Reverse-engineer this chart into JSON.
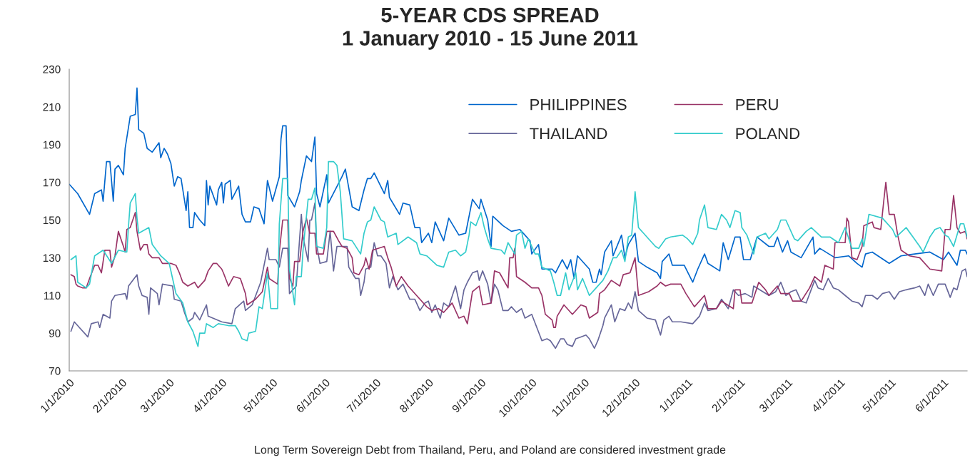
{
  "chart_data": {
    "type": "line",
    "title": "5-YEAR CDS SPREAD\n1 January 2010 - 15 June 2011",
    "xlim": [
      "2010-01-01",
      "2011-06-15"
    ],
    "xticks": [
      {
        "value": "2010-01-01",
        "label": "1/1/2010"
      },
      {
        "value": "2010-02-01",
        "label": "2/1/2010"
      },
      {
        "value": "2010-03-01",
        "label": "3/1/2010"
      },
      {
        "value": "2010-04-01",
        "label": "4/1/2010"
      },
      {
        "value": "2010-05-01",
        "label": "5/1/2010"
      },
      {
        "value": "2010-06-01",
        "label": "6/1/2010"
      },
      {
        "value": "2010-07-01",
        "label": "7/1/2010"
      },
      {
        "value": "2010-08-01",
        "label": "8/1/2010"
      },
      {
        "value": "2010-09-01",
        "label": "9/1/2010"
      },
      {
        "value": "2010-10-01",
        "label": "10/1/2010"
      },
      {
        "value": "2010-11-01",
        "label": "11/1/2010"
      },
      {
        "value": "2010-12-01",
        "label": "12/1/2010"
      },
      {
        "value": "2011-01-01",
        "label": "1/1/2011"
      },
      {
        "value": "2011-02-01",
        "label": "2/1/2011"
      },
      {
        "value": "2011-03-01",
        "label": "3/1/2011"
      },
      {
        "value": "2011-04-01",
        "label": "4/1/2011"
      },
      {
        "value": "2011-05-01",
        "label": "5/1/2011"
      },
      {
        "value": "2011-06-01",
        "label": "6/1/2011"
      }
    ],
    "ylim": [
      70,
      230
    ],
    "yticks": [
      70,
      90,
      110,
      130,
      150,
      170,
      190,
      210,
      230
    ],
    "grid": false,
    "legend": "top right",
    "annotations": [
      "Long Term Sovereign Debt from Thailand, Peru, and Poland are considered investment grade"
    ],
    "series": [
      {
        "name": "PHILIPPINES",
        "color": "#0066cc",
        "x": [
          "2010-01-01",
          "2010-01-06",
          "2010-01-13",
          "2010-01-16",
          "2010-01-20",
          "2010-01-21",
          "2010-01-23",
          "2010-01-25",
          "2010-01-27",
          "2010-01-28",
          "2010-01-30",
          "2010-02-02",
          "2010-02-03",
          "2010-02-06",
          "2010-02-09",
          "2010-02-10",
          "2010-02-11",
          "2010-02-14",
          "2010-02-16",
          "2010-02-19",
          "2010-02-23",
          "2010-02-24",
          "2010-02-26",
          "2010-02-28",
          "2010-03-02",
          "2010-03-04",
          "2010-03-06",
          "2010-03-08",
          "2010-03-11",
          "2010-03-12",
          "2010-03-13",
          "2010-03-15",
          "2010-03-16",
          "2010-03-19",
          "2010-03-22",
          "2010-03-23",
          "2010-03-24",
          "2010-03-25",
          "2010-03-29",
          "2010-03-30",
          "2010-04-01",
          "2010-04-02",
          "2010-04-03",
          "2010-04-06",
          "2010-04-07",
          "2010-04-11",
          "2010-04-13",
          "2010-04-15",
          "2010-04-18",
          "2010-04-20",
          "2010-04-23",
          "2010-04-26",
          "2010-04-28",
          "2010-05-01",
          "2010-05-05",
          "2010-05-06",
          "2010-05-07",
          "2010-05-09",
          "2010-05-10",
          "2010-05-14",
          "2010-05-17",
          "2010-05-18",
          "2010-05-21",
          "2010-05-24",
          "2010-05-26",
          "2010-05-27",
          "2010-05-29",
          "2010-06-02",
          "2010-06-03",
          "2010-06-11",
          "2010-06-13",
          "2010-06-17",
          "2010-06-21",
          "2010-06-24",
          "2010-06-26",
          "2010-06-28",
          "2010-06-30",
          "2010-07-06",
          "2010-07-08",
          "2010-07-09",
          "2010-07-15",
          "2010-07-17",
          "2010-07-21",
          "2010-07-24",
          "2010-07-27",
          "2010-07-28",
          "2010-08-01",
          "2010-08-03",
          "2010-08-05",
          "2010-08-10",
          "2010-08-13",
          "2010-08-19",
          "2010-08-23",
          "2010-08-27",
          "2010-08-31",
          "2010-09-01",
          "2010-09-05",
          "2010-09-07",
          "2010-09-08",
          "2010-09-14",
          "2010-09-19",
          "2010-09-24",
          "2010-09-30",
          "2010-10-01",
          "2010-10-05",
          "2010-10-07",
          "2010-10-13",
          "2010-10-15",
          "2010-10-19",
          "2010-10-22",
          "2010-10-24",
          "2010-10-26",
          "2010-10-28",
          "2010-11-04",
          "2010-11-06",
          "2010-11-08",
          "2010-11-10",
          "2010-11-11",
          "2010-11-13",
          "2010-11-17",
          "2010-11-18",
          "2010-11-23",
          "2010-11-25",
          "2010-11-27",
          "2010-12-01",
          "2010-12-03",
          "2010-12-08",
          "2010-12-14",
          "2010-12-16",
          "2010-12-17",
          "2010-12-21",
          "2010-12-23",
          "2010-12-30",
          "2011-01-04",
          "2011-01-07",
          "2011-01-11",
          "2011-01-13",
          "2011-01-20",
          "2011-01-22",
          "2011-01-25",
          "2011-01-29",
          "2011-02-01",
          "2011-02-03",
          "2011-02-07",
          "2011-02-11",
          "2011-02-18",
          "2011-02-21",
          "2011-02-23",
          "2011-02-26",
          "2011-03-01",
          "2011-03-03",
          "2011-03-09",
          "2011-03-16",
          "2011-03-17",
          "2011-03-20",
          "2011-03-29",
          "2011-04-06",
          "2011-04-11",
          "2011-04-14",
          "2011-04-16",
          "2011-04-20",
          "2011-04-30",
          "2011-05-07",
          "2011-05-15",
          "2011-05-24",
          "2011-06-01",
          "2011-06-04",
          "2011-06-09",
          "2011-06-11",
          "2011-06-14",
          "2011-06-15"
        ],
        "values": [
          169,
          164,
          153,
          164,
          166,
          160,
          181,
          181,
          160,
          177,
          179,
          174,
          188,
          205,
          206,
          220,
          198,
          196,
          188,
          186,
          191,
          183,
          188,
          185,
          180,
          168,
          173,
          172,
          155,
          165,
          146,
          146,
          154,
          150,
          147,
          171,
          158,
          168,
          158,
          166,
          170,
          159,
          169,
          171,
          161,
          168,
          153,
          149,
          149,
          157,
          156,
          148,
          171,
          160,
          173,
          193,
          200,
          200,
          163,
          157,
          165,
          171,
          184,
          181,
          194,
          164,
          157,
          174,
          159,
          173,
          177,
          157,
          155,
          166,
          172,
          172,
          175,
          164,
          171,
          162,
          153,
          159,
          158,
          146,
          146,
          138,
          143,
          138,
          149,
          139,
          151,
          142,
          143,
          161,
          156,
          161,
          150,
          136,
          152,
          147,
          144,
          145,
          139,
          132,
          137,
          124,
          124,
          122,
          129,
          124,
          129,
          119,
          131,
          124,
          117,
          117,
          124,
          121,
          133,
          139,
          131,
          142,
          130,
          137,
          143,
          128,
          125,
          122,
          119,
          128,
          132,
          126,
          126,
          117,
          124,
          132,
          127,
          123,
          138,
          129,
          141,
          141,
          129,
          129,
          141,
          136,
          136,
          141,
          133,
          139,
          133,
          130,
          141,
          132,
          135,
          130,
          131,
          127,
          125,
          132,
          133,
          127,
          131,
          132,
          133,
          129,
          133,
          126,
          134,
          134,
          132
        ]
      },
      {
        "name": "THAILAND",
        "color": "#666699",
        "x": [
          "2010-01-02",
          "2010-01-04",
          "2010-01-07",
          "2010-01-12",
          "2010-01-14",
          "2010-01-18",
          "2010-01-19",
          "2010-01-21",
          "2010-01-25",
          "2010-01-26",
          "2010-01-28",
          "2010-02-03",
          "2010-02-04",
          "2010-02-05",
          "2010-02-10",
          "2010-02-11",
          "2010-02-13",
          "2010-02-16",
          "2010-02-17",
          "2010-02-18",
          "2010-02-22",
          "2010-02-23",
          "2010-02-25",
          "2010-03-03",
          "2010-03-04",
          "2010-03-08",
          "2010-03-10",
          "2010-03-12",
          "2010-03-15",
          "2010-03-16",
          "2010-03-19",
          "2010-03-23",
          "2010-03-24",
          "2010-04-01",
          "2010-04-07",
          "2010-04-09",
          "2010-04-14",
          "2010-04-15",
          "2010-04-19",
          "2010-04-24",
          "2010-04-28",
          "2010-04-29",
          "2010-05-03",
          "2010-05-05",
          "2010-05-07",
          "2010-05-10",
          "2010-05-11",
          "2010-05-15",
          "2010-05-18",
          "2010-05-19",
          "2010-05-22",
          "2010-05-23",
          "2010-05-24",
          "2010-05-26",
          "2010-05-27",
          "2010-05-29",
          "2010-06-02",
          "2010-06-04",
          "2010-06-06",
          "2010-06-08",
          "2010-06-14",
          "2010-06-15",
          "2010-06-19",
          "2010-06-21",
          "2010-06-22",
          "2010-06-24",
          "2010-06-25",
          "2010-06-28",
          "2010-06-30",
          "2010-07-02",
          "2010-07-04",
          "2010-07-07",
          "2010-07-09",
          "2010-07-11",
          "2010-07-14",
          "2010-07-17",
          "2010-07-21",
          "2010-07-24",
          "2010-07-27",
          "2010-07-30",
          "2010-08-01",
          "2010-08-03",
          "2010-08-05",
          "2010-08-08",
          "2010-08-10",
          "2010-08-13",
          "2010-08-17",
          "2010-08-20",
          "2010-08-22",
          "2010-08-24",
          "2010-08-27",
          "2010-08-30",
          "2010-08-31",
          "2010-09-02",
          "2010-09-05",
          "2010-09-07",
          "2010-09-09",
          "2010-09-11",
          "2010-09-14",
          "2010-09-17",
          "2010-09-19",
          "2010-09-22",
          "2010-09-25",
          "2010-09-27",
          "2010-10-01",
          "2010-10-07",
          "2010-10-10",
          "2010-10-12",
          "2010-10-15",
          "2010-10-18",
          "2010-10-20",
          "2010-10-22",
          "2010-10-25",
          "2010-10-27",
          "2010-10-30",
          "2010-11-02",
          "2010-11-04",
          "2010-11-07",
          "2010-11-09",
          "2010-11-12",
          "2010-11-13",
          "2010-11-17",
          "2010-11-19",
          "2010-11-22",
          "2010-11-25",
          "2010-11-27",
          "2010-11-29",
          "2010-12-01",
          "2010-12-03",
          "2010-12-08",
          "2010-12-13",
          "2010-12-16",
          "2010-12-18",
          "2010-12-21",
          "2010-12-23",
          "2010-12-28",
          "2011-01-04",
          "2011-01-08",
          "2011-01-11",
          "2011-01-13",
          "2011-01-18",
          "2011-01-21",
          "2011-01-25",
          "2011-01-28",
          "2011-01-31",
          "2011-02-04",
          "2011-02-08",
          "2011-02-09",
          "2011-02-18",
          "2011-02-22",
          "2011-02-25",
          "2011-02-28",
          "2011-03-03",
          "2011-03-06",
          "2011-03-09",
          "2011-03-12",
          "2011-03-17",
          "2011-03-19",
          "2011-03-22",
          "2011-03-25",
          "2011-03-28",
          "2011-03-31",
          "2011-04-04",
          "2011-04-08",
          "2011-04-12",
          "2011-04-14",
          "2011-04-16",
          "2011-04-20",
          "2011-04-23",
          "2011-04-26",
          "2011-04-30",
          "2011-05-03",
          "2011-05-06",
          "2011-05-10",
          "2011-05-15",
          "2011-05-18",
          "2011-05-21",
          "2011-05-23",
          "2011-05-26",
          "2011-05-29",
          "2011-06-02",
          "2011-06-05",
          "2011-06-07",
          "2011-06-09",
          "2011-06-12",
          "2011-06-14",
          "2011-06-15"
        ],
        "values": [
          91,
          96,
          93,
          88,
          95,
          96,
          93,
          100,
          98,
          107,
          110,
          111,
          108,
          115,
          121,
          115,
          110,
          109,
          100,
          114,
          111,
          105,
          116,
          115,
          108,
          107,
          101,
          96,
          98,
          101,
          97,
          105,
          99,
          96,
          95,
          103,
          107,
          102,
          105,
          117,
          135,
          129,
          129,
          125,
          135,
          135,
          111,
          115,
          153,
          141,
          128,
          150,
          150,
          159,
          137,
          127,
          128,
          144,
          123,
          136,
          136,
          125,
          119,
          119,
          110,
          117,
          124,
          125,
          138,
          131,
          131,
          127,
          114,
          120,
          113,
          116,
          108,
          108,
          102,
          106,
          107,
          101,
          105,
          98,
          106,
          104,
          115,
          103,
          113,
          117,
          122,
          123,
          118,
          123,
          116,
          106,
          116,
          113,
          102,
          102,
          104,
          101,
          103,
          98,
          100,
          86,
          87,
          86,
          82,
          87,
          87,
          84,
          83,
          87,
          88,
          89,
          87,
          82,
          86,
          94,
          98,
          105,
          96,
          103,
          102,
          106,
          103,
          112,
          102,
          98,
          97,
          89,
          97,
          99,
          96,
          96,
          95,
          99,
          106,
          102,
          103,
          108,
          103,
          113,
          110,
          111,
          109,
          115,
          110,
          112,
          117,
          110,
          112,
          113,
          107,
          106,
          118,
          114,
          113,
          119,
          114,
          113,
          110,
          107,
          106,
          104,
          110,
          110,
          108,
          111,
          112,
          108,
          112,
          113,
          114,
          115,
          110,
          116,
          110,
          116,
          116,
          109,
          114,
          113,
          123,
          124,
          120
        ]
      },
      {
        "name": "PERU",
        "color": "#993366",
        "x": [
          "2010-01-02",
          "2010-01-04",
          "2010-01-05",
          "2010-01-06",
          "2010-01-09",
          "2010-01-11",
          "2010-01-13",
          "2010-01-16",
          "2010-01-18",
          "2010-01-20",
          "2010-01-22",
          "2010-01-25",
          "2010-01-26",
          "2010-01-28",
          "2010-01-30",
          "2010-02-02",
          "2010-02-03",
          "2010-02-04",
          "2010-02-06",
          "2010-02-09",
          "2010-02-10",
          "2010-02-12",
          "2010-02-14",
          "2010-02-16",
          "2010-02-17",
          "2010-02-19",
          "2010-02-23",
          "2010-02-25",
          "2010-02-28",
          "2010-03-02",
          "2010-03-05",
          "2010-03-07",
          "2010-03-09",
          "2010-03-12",
          "2010-03-16",
          "2010-03-18",
          "2010-03-22",
          "2010-03-24",
          "2010-03-27",
          "2010-03-29",
          "2010-04-01",
          "2010-04-02",
          "2010-04-05",
          "2010-04-08",
          "2010-04-12",
          "2010-04-15",
          "2010-04-16",
          "2010-04-21",
          "2010-04-25",
          "2010-04-28",
          "2010-04-29",
          "2010-05-04",
          "2010-05-05",
          "2010-05-07",
          "2010-05-10",
          "2010-05-11",
          "2010-05-13",
          "2010-05-14",
          "2010-05-17",
          "2010-05-19",
          "2010-05-21",
          "2010-05-23",
          "2010-05-26",
          "2010-05-27",
          "2010-05-31",
          "2010-06-02",
          "2010-06-06",
          "2010-06-09",
          "2010-06-11",
          "2010-06-14",
          "2010-06-17",
          "2010-06-18",
          "2010-06-21",
          "2010-06-24",
          "2010-06-25",
          "2010-06-27",
          "2010-06-29",
          "2010-07-06",
          "2010-07-08",
          "2010-07-10",
          "2010-07-13",
          "2010-07-16",
          "2010-07-20",
          "2010-07-27",
          "2010-07-31",
          "2010-08-03",
          "2010-08-07",
          "2010-08-10",
          "2010-08-15",
          "2010-08-19",
          "2010-08-22",
          "2010-08-24",
          "2010-08-27",
          "2010-08-31",
          "2010-09-02",
          "2010-09-07",
          "2010-09-09",
          "2010-09-12",
          "2010-09-17",
          "2010-09-18",
          "2010-09-20",
          "2010-09-21",
          "2010-09-22",
          "2010-09-27",
          "2010-10-01",
          "2010-10-05",
          "2010-10-07",
          "2010-10-09",
          "2010-10-13",
          "2010-10-14",
          "2010-10-15",
          "2010-10-16",
          "2010-10-20",
          "2010-10-25",
          "2010-10-30",
          "2010-11-02",
          "2010-11-04",
          "2010-11-09",
          "2010-11-10",
          "2010-11-13",
          "2010-11-17",
          "2010-11-22",
          "2010-11-24",
          "2010-11-28",
          "2010-12-01",
          "2010-12-03",
          "2010-12-09",
          "2010-12-14",
          "2010-12-16",
          "2010-12-19",
          "2010-12-22",
          "2010-12-28",
          "2010-12-31",
          "2011-01-05",
          "2011-01-11",
          "2011-01-13",
          "2011-01-18",
          "2011-01-21",
          "2011-01-28",
          "2011-01-29",
          "2011-02-01",
          "2011-02-02",
          "2011-02-08",
          "2011-02-12",
          "2011-02-16",
          "2011-02-18",
          "2011-02-23",
          "2011-02-25",
          "2011-03-02",
          "2011-03-04",
          "2011-03-09",
          "2011-03-14",
          "2011-03-17",
          "2011-03-21",
          "2011-03-23",
          "2011-03-28",
          "2011-03-29",
          "2011-04-04",
          "2011-04-05",
          "2011-04-06",
          "2011-04-08",
          "2011-04-11",
          "2011-04-14",
          "2011-04-15",
          "2011-04-20",
          "2011-04-21",
          "2011-04-25",
          "2011-04-27",
          "2011-04-28",
          "2011-04-30",
          "2011-05-03",
          "2011-05-05",
          "2011-05-07",
          "2011-05-12",
          "2011-05-18",
          "2011-05-24",
          "2011-05-31",
          "2011-06-02",
          "2011-06-05",
          "2011-06-07",
          "2011-06-09",
          "2011-06-11",
          "2011-06-14",
          "2011-06-15"
        ],
        "values": [
          121,
          120,
          116,
          115,
          114,
          114,
          119,
          126,
          126,
          122,
          134,
          134,
          125,
          131,
          144,
          136,
          133,
          145,
          146,
          154,
          144,
          134,
          137,
          137,
          132,
          130,
          130,
          127,
          127,
          127,
          126,
          122,
          117,
          115,
          117,
          114,
          118,
          123,
          127,
          127,
          124,
          122,
          115,
          120,
          119,
          111,
          105,
          108,
          112,
          125,
          119,
          116,
          133,
          150,
          150,
          119,
          115,
          128,
          128,
          144,
          151,
          143,
          143,
          132,
          132,
          144,
          144,
          139,
          136,
          135,
          130,
          122,
          121,
          126,
          130,
          124,
          134,
          136,
          130,
          125,
          115,
          120,
          115,
          108,
          104,
          102,
          103,
          101,
          106,
          98,
          99,
          95,
          112,
          115,
          105,
          106,
          123,
          122,
          114,
          130,
          130,
          135,
          120,
          117,
          114,
          114,
          110,
          100,
          97,
          93,
          93,
          99,
          105,
          100,
          105,
          104,
          98,
          101,
          111,
          113,
          118,
          115,
          121,
          122,
          130,
          110,
          112,
          115,
          117,
          115,
          116,
          116,
          111,
          104,
          110,
          103,
          103,
          107,
          103,
          113,
          113,
          106,
          106,
          117,
          113,
          110,
          115,
          111,
          111,
          107,
          107,
          114,
          120,
          117,
          126,
          124,
          138,
          138,
          151,
          149,
          130,
          129,
          136,
          147,
          149,
          146,
          145,
          162,
          170,
          153,
          153,
          142,
          134,
          131,
          130,
          124,
          123,
          145,
          145,
          163,
          146,
          143,
          144,
          140
        ]
      },
      {
        "name": "POLAND",
        "color": "#33cccc",
        "x": [
          "2010-01-02",
          "2010-01-05",
          "2010-01-06",
          "2010-01-11",
          "2010-01-13",
          "2010-01-16",
          "2010-01-21",
          "2010-01-26",
          "2010-01-30",
          "2010-02-04",
          "2010-02-05",
          "2010-02-06",
          "2010-02-09",
          "2010-02-10",
          "2010-02-11",
          "2010-02-17",
          "2010-02-19",
          "2010-02-24",
          "2010-03-01",
          "2010-03-03",
          "2010-03-05",
          "2010-03-09",
          "2010-03-12",
          "2010-03-15",
          "2010-03-18",
          "2010-03-19",
          "2010-03-22",
          "2010-03-23",
          "2010-03-27",
          "2010-03-30",
          "2010-04-05",
          "2010-04-09",
          "2010-04-11",
          "2010-04-13",
          "2010-04-16",
          "2010-04-17",
          "2010-04-21",
          "2010-04-23",
          "2010-04-25",
          "2010-04-28",
          "2010-04-30",
          "2010-05-04",
          "2010-05-05",
          "2010-05-07",
          "2010-05-10",
          "2010-05-11",
          "2010-05-14",
          "2010-05-15",
          "2010-05-18",
          "2010-05-19",
          "2010-05-22",
          "2010-05-24",
          "2010-05-26",
          "2010-05-27",
          "2010-05-31",
          "2010-06-02",
          "2010-06-03",
          "2010-06-06",
          "2010-06-08",
          "2010-06-10",
          "2010-06-12",
          "2010-06-17",
          "2010-06-22",
          "2010-06-24",
          "2010-06-26",
          "2010-06-28",
          "2010-06-30",
          "2010-07-04",
          "2010-07-06",
          "2010-07-08",
          "2010-07-13",
          "2010-07-14",
          "2010-07-20",
          "2010-07-25",
          "2010-07-27",
          "2010-07-31",
          "2010-08-06",
          "2010-08-10",
          "2010-08-13",
          "2010-08-17",
          "2010-08-20",
          "2010-08-23",
          "2010-08-25",
          "2010-08-26",
          "2010-08-29",
          "2010-09-01",
          "2010-09-03",
          "2010-09-05",
          "2010-09-07",
          "2010-09-13",
          "2010-09-15",
          "2010-09-17",
          "2010-09-21",
          "2010-09-22",
          "2010-09-25",
          "2010-09-27",
          "2010-09-29",
          "2010-10-03",
          "2010-10-05",
          "2010-10-07",
          "2010-10-12",
          "2010-10-14",
          "2010-10-16",
          "2010-10-18",
          "2010-10-21",
          "2010-10-23",
          "2010-10-27",
          "2010-10-28",
          "2010-10-31",
          "2010-11-04",
          "2010-11-08",
          "2010-11-12",
          "2010-11-15",
          "2010-11-18",
          "2010-11-20",
          "2010-11-23",
          "2010-11-25",
          "2010-11-27",
          "2010-11-29",
          "2010-12-01",
          "2010-12-03",
          "2010-12-06",
          "2010-12-09",
          "2010-12-13",
          "2010-12-15",
          "2010-12-19",
          "2010-12-22",
          "2010-12-29",
          "2011-01-01",
          "2011-01-04",
          "2011-01-07",
          "2011-01-08",
          "2011-01-11",
          "2011-01-13",
          "2011-01-18",
          "2011-01-21",
          "2011-01-24",
          "2011-01-26",
          "2011-01-29",
          "2011-02-01",
          "2011-02-02",
          "2011-02-05",
          "2011-02-09",
          "2011-02-11",
          "2011-02-16",
          "2011-02-18",
          "2011-02-23",
          "2011-02-25",
          "2011-02-28",
          "2011-03-05",
          "2011-03-07",
          "2011-03-12",
          "2011-03-15",
          "2011-03-21",
          "2011-03-26",
          "2011-03-31",
          "2011-04-04",
          "2011-04-08",
          "2011-04-12",
          "2011-04-14",
          "2011-04-15",
          "2011-04-18",
          "2011-04-26",
          "2011-05-02",
          "2011-05-04",
          "2011-05-10",
          "2011-05-14",
          "2011-05-18",
          "2011-05-20",
          "2011-05-24",
          "2011-05-27",
          "2011-05-30",
          "2011-06-02",
          "2011-06-04",
          "2011-06-07",
          "2011-06-11",
          "2011-06-13",
          "2011-06-15"
        ],
        "values": [
          129,
          131,
          117,
          114,
          116,
          131,
          134,
          127,
          134,
          133,
          147,
          159,
          164,
          151,
          143,
          146,
          137,
          131,
          127,
          119,
          111,
          106,
          96,
          91,
          83,
          90,
          90,
          95,
          93,
          95,
          94,
          94,
          91,
          87,
          86,
          90,
          91,
          104,
          103,
          122,
          103,
          103,
          148,
          172,
          172,
          124,
          105,
          120,
          120,
          134,
          161,
          161,
          167,
          136,
          135,
          146,
          181,
          181,
          179,
          165,
          140,
          139,
          132,
          143,
          149,
          150,
          157,
          150,
          149,
          141,
          143,
          137,
          141,
          138,
          132,
          131,
          126,
          125,
          133,
          134,
          131,
          133,
          142,
          149,
          147,
          154,
          146,
          140,
          135,
          134,
          132,
          138,
          132,
          142,
          144,
          135,
          140,
          132,
          132,
          125,
          123,
          117,
          110,
          110,
          122,
          113,
          122,
          113,
          119,
          110,
          114,
          118,
          123,
          130,
          130,
          134,
          128,
          141,
          142,
          165,
          146,
          143,
          140,
          136,
          135,
          140,
          141,
          142,
          140,
          137,
          143,
          150,
          158,
          146,
          145,
          153,
          150,
          146,
          155,
          154,
          146,
          142,
          132,
          141,
          143,
          140,
          145,
          150,
          150,
          140,
          139,
          144,
          146,
          141,
          141,
          138,
          146,
          135,
          135,
          140,
          136,
          153,
          151,
          145,
          141,
          146,
          141,
          136,
          133,
          141,
          145,
          146,
          142,
          141,
          136,
          148,
          148,
          141
        ]
      }
    ]
  }
}
